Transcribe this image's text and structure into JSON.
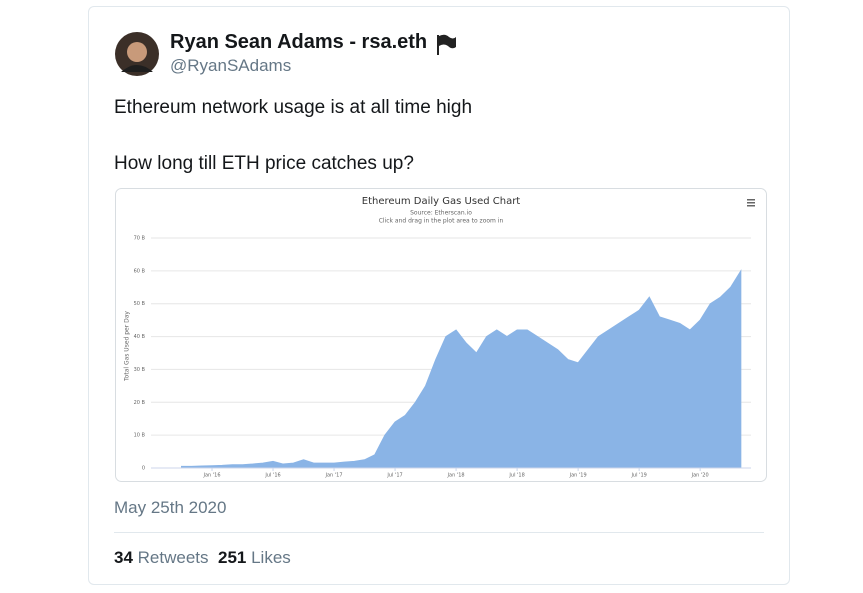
{
  "tweet": {
    "author": {
      "name": "Ryan Sean Adams - rsa.eth",
      "handle": "@RyanSAdams"
    },
    "text": [
      "Ethereum network usage is at all time high",
      "How long till ETH price catches up?"
    ],
    "date": "May 25th 2020",
    "stats": {
      "retweets": {
        "count": 34,
        "label": "Retweets"
      },
      "likes": {
        "count": 251,
        "label": "Likes"
      }
    }
  },
  "chart_data": {
    "type": "area",
    "title": "Ethereum Daily Gas Used Chart",
    "subtitle": "Source: Etherscan.io",
    "note": "Click and drag in the plot area to zoom in",
    "y_label": "Total Gas Used per Day",
    "color": "#8ab4e6",
    "grid": true,
    "x": [
      "2015-10",
      "2015-11",
      "2015-12",
      "2016-01",
      "2016-02",
      "2016-03",
      "2016-04",
      "2016-05",
      "2016-06",
      "2016-07",
      "2016-08",
      "2016-09",
      "2016-10",
      "2016-11",
      "2016-12",
      "2017-01",
      "2017-02",
      "2017-03",
      "2017-04",
      "2017-05",
      "2017-06",
      "2017-07",
      "2017-08",
      "2017-09",
      "2017-10",
      "2017-11",
      "2017-12",
      "2018-01",
      "2018-02",
      "2018-03",
      "2018-04",
      "2018-05",
      "2018-06",
      "2018-07",
      "2018-08",
      "2018-09",
      "2018-10",
      "2018-11",
      "2018-12",
      "2019-01",
      "2019-02",
      "2019-03",
      "2019-04",
      "2019-05",
      "2019-06",
      "2019-07",
      "2019-08",
      "2019-09",
      "2019-10",
      "2019-11",
      "2019-12",
      "2020-01",
      "2020-02",
      "2020-03",
      "2020-04",
      "2020-05"
    ],
    "values": [
      0.5,
      0.5,
      0.6,
      0.7,
      0.8,
      1,
      1,
      1.2,
      1.5,
      2,
      1.2,
      1.5,
      2.5,
      1.5,
      1.5,
      1.5,
      1.8,
      2,
      2.5,
      4,
      10,
      14,
      16,
      20,
      25,
      33,
      40,
      42,
      38,
      35,
      40,
      42,
      40,
      42,
      42,
      40,
      38,
      36,
      33,
      32,
      36,
      40,
      42,
      44,
      46,
      48,
      52,
      46,
      45,
      44,
      42,
      45,
      50,
      52,
      55,
      60
    ],
    "xlim": [
      "2015-07",
      "2020-06"
    ],
    "xticks": [
      {
        "value": "2016-01",
        "label": "Jan '16"
      },
      {
        "value": "2016-07",
        "label": "Jul '16"
      },
      {
        "value": "2017-01",
        "label": "Jan '17"
      },
      {
        "value": "2017-07",
        "label": "Jul '17"
      },
      {
        "value": "2018-01",
        "label": "Jan '18"
      },
      {
        "value": "2018-07",
        "label": "Jul '18"
      },
      {
        "value": "2019-01",
        "label": "Jan '19"
      },
      {
        "value": "2019-07",
        "label": "Jul '19"
      },
      {
        "value": "2020-01",
        "label": "Jan '20"
      }
    ],
    "ylim": [
      0,
      70
    ],
    "yticks": [
      0,
      {
        "value": 10,
        "label": "10 B"
      },
      {
        "value": 20,
        "label": "20 B"
      },
      {
        "value": 30,
        "label": "30 B"
      },
      {
        "value": 40,
        "label": "40 B"
      },
      {
        "value": 50,
        "label": "50 B"
      },
      {
        "value": 60,
        "label": "60 B"
      },
      {
        "value": 70,
        "label": "70 B"
      }
    ]
  }
}
